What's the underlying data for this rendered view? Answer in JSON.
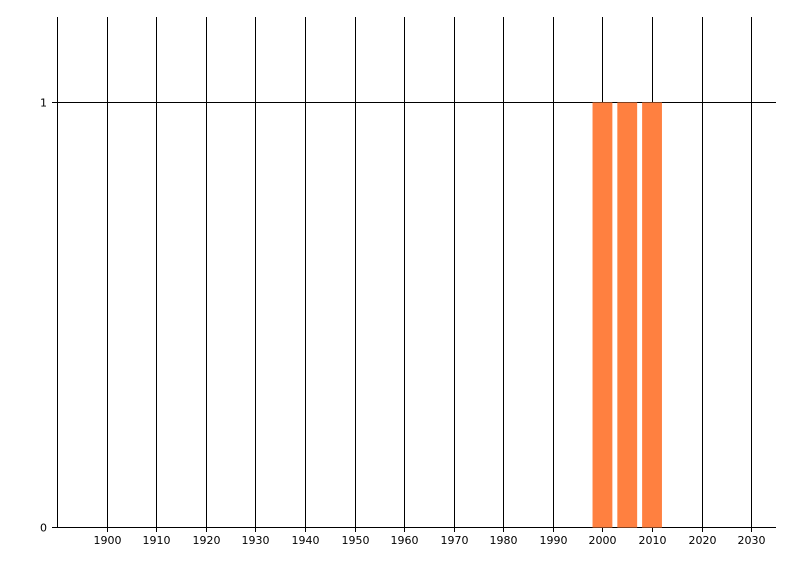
{
  "chart_data": {
    "type": "bar",
    "title": "",
    "xlabel": "",
    "ylabel": "",
    "x": [
      2000,
      2005,
      2010
    ],
    "values": [
      1,
      1,
      1
    ],
    "bar_width_years": 4,
    "xlim": [
      1890,
      2035
    ],
    "ylim": [
      0,
      1.2
    ],
    "x_ticks": [
      1900,
      1910,
      1920,
      1930,
      1940,
      1950,
      1960,
      1970,
      1980,
      1990,
      2000,
      2010,
      2020,
      2030
    ],
    "y_ticks": [
      0,
      1
    ],
    "grid": true,
    "legend": "none",
    "bar_color": "#FF8040",
    "grid_color": "#000000"
  }
}
